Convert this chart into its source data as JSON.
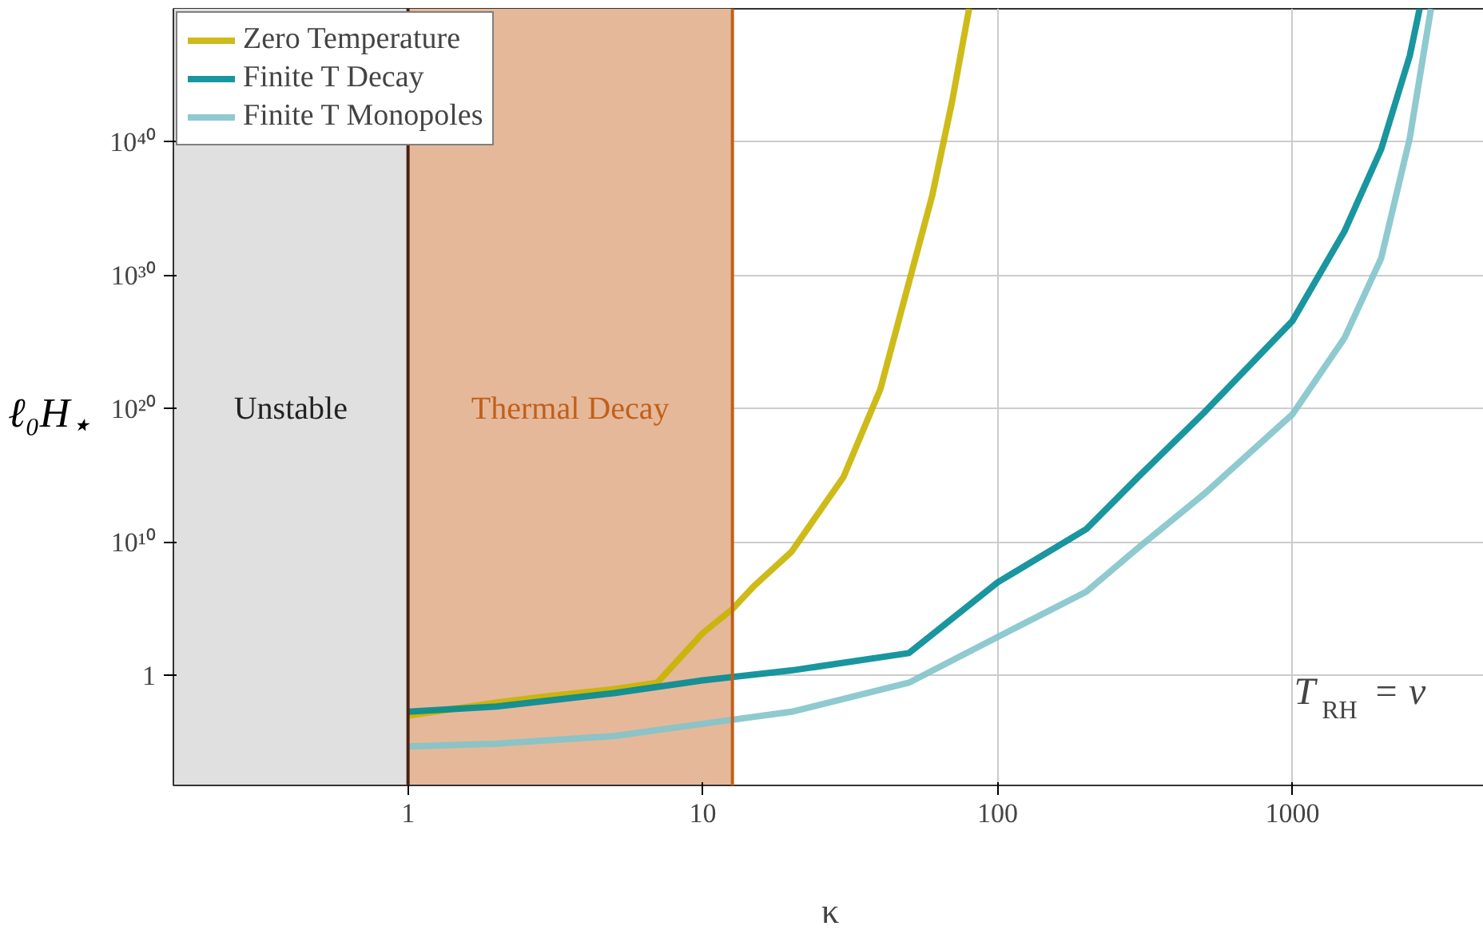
{
  "chart_data": {
    "type": "line",
    "xlabel": "κ",
    "ylabel": "ℓ₀H$_{⋆}$",
    "log": "xy",
    "grid": true,
    "legend": "top left",
    "xlim": [
      0.16,
      4570
    ],
    "xticks": [
      1,
      10,
      100,
      1000
    ],
    "ylim": [
      6e-09,
      1e+50
    ],
    "yticks": [
      {
        "value": 1,
        "label": "1"
      },
      {
        "value": 10000000000.0,
        "label": "10¹⁰"
      },
      {
        "value": 1e+20,
        "label": "10²⁰"
      },
      {
        "value": 1e+30,
        "label": "10³⁰"
      },
      {
        "value": 1e+40,
        "label": "10⁴⁰"
      }
    ],
    "series": [
      {
        "name": "Zero Temperature",
        "color": "#c9b400",
        "x": [
          1,
          2,
          3,
          5,
          7,
          10,
          12.6,
          15,
          20,
          30,
          40,
          50,
          60,
          70,
          80
        ],
        "values": [
          0.001,
          0.01,
          0.03,
          0.1,
          0.3,
          1600.0,
          100000.0,
          6000000.0,
          2000000000.0,
          800000000000000.0,
          3e+21,
          3e+29,
          1e+36,
          1e+43,
          1e+50
        ]
      },
      {
        "name": "Finite T Decay",
        "color": "#008b95",
        "x": [
          1,
          2,
          5,
          10,
          20,
          50,
          100,
          200,
          300,
          500,
          1000,
          1500,
          2000,
          2500,
          2700
        ],
        "values": [
          0.002,
          0.005,
          0.05,
          0.45,
          2.5,
          50,
          10000000.0,
          100000000000.0,
          800000000000000.0,
          5e+19,
          4e+26,
          2e+33,
          3e+39,
          3e+46,
          1e+50
        ]
      },
      {
        "name": "Finite T Monopoles",
        "color": "#82c4cb",
        "x": [
          1,
          2,
          5,
          10,
          20,
          50,
          100,
          200,
          300,
          500,
          1000,
          1500,
          2000,
          2500,
          2950
        ],
        "values": [
          5e-06,
          8e-06,
          3e-05,
          0.00025,
          0.002,
          0.3,
          800,
          2000000.0,
          4000000000.0,
          40000000000000.0,
          4e+19,
          2e+25,
          2e+31,
          2e+40,
          1e+50
        ]
      }
    ],
    "bands": [
      {
        "axis": "x",
        "from": 0.16,
        "to": 1,
        "label": "Unstable",
        "color": "#e0e0e0"
      },
      {
        "axis": "x",
        "from": 1,
        "to": 12.6,
        "label": "Thermal Decay",
        "color": "#e6b89a"
      }
    ],
    "ref_lines": [
      {
        "axis": "x",
        "value": 1,
        "color": "#4a2010"
      },
      {
        "axis": "x",
        "value": 12.6,
        "color": "#c0601a"
      }
    ],
    "annotations": [
      "T$_{RH}$ = v"
    ]
  }
}
